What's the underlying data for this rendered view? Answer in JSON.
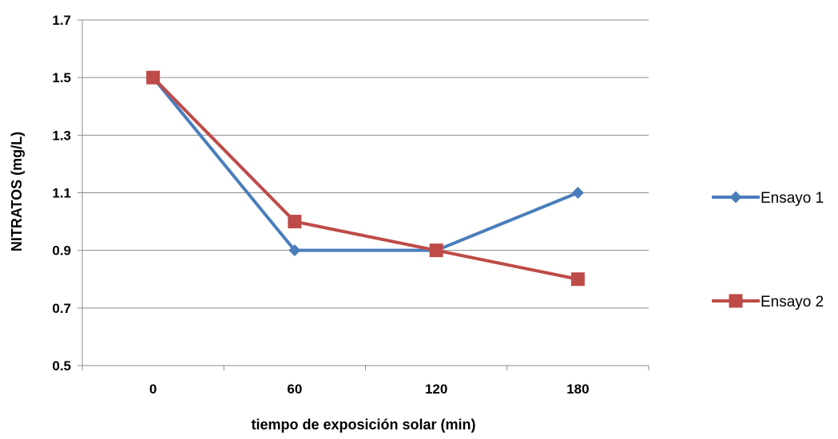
{
  "chart_data": {
    "type": "line",
    "title": "",
    "xlabel": "tiempo de exposición solar (min)",
    "ylabel": "NITRATOS (mg/L)",
    "categories": [
      "0",
      "60",
      "120",
      "180"
    ],
    "yticks": [
      "0.5",
      "0.7",
      "0.9",
      "1.1",
      "1.3",
      "1.5",
      "1.7"
    ],
    "ylim": [
      0.5,
      1.7
    ],
    "grid": true,
    "legend_position": "right",
    "series": [
      {
        "name": "Ensayo 1",
        "values": [
          1.5,
          0.9,
          0.9,
          1.1
        ],
        "color": "#4a7ebb",
        "marker": "diamond"
      },
      {
        "name": "Ensayo 2",
        "values": [
          1.5,
          1.0,
          0.9,
          0.8
        ],
        "color": "#be4b48",
        "marker": "square"
      }
    ]
  }
}
